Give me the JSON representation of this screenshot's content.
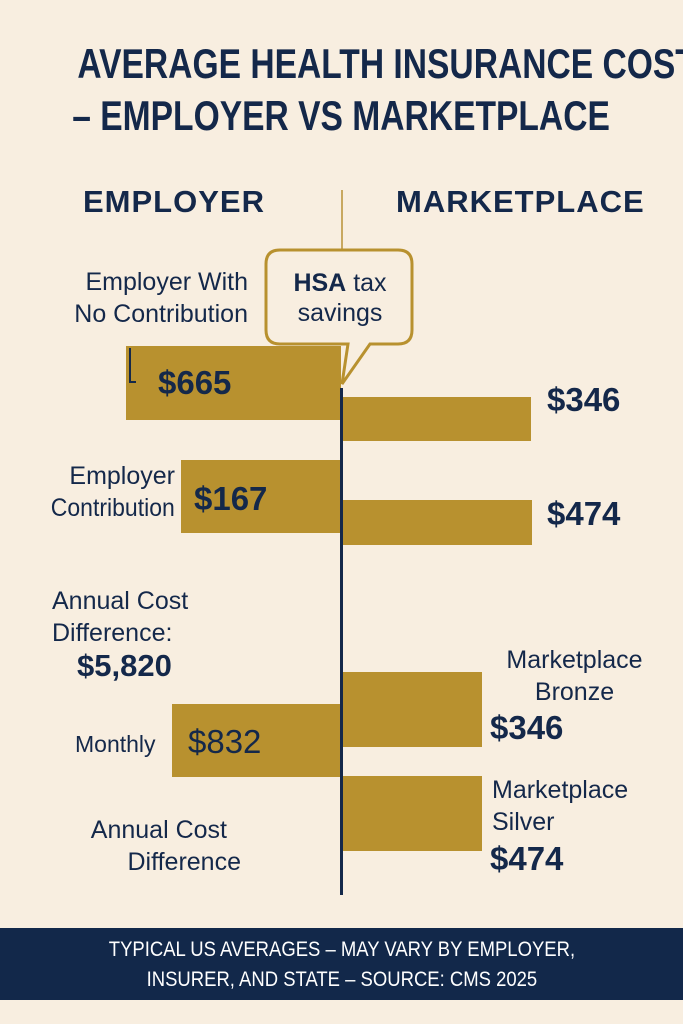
{
  "title": {
    "line1": "AVERAGE HEALTH INSURANCE COST",
    "line2": "– EMPLOYER VS MARKETPLACE"
  },
  "colors": {
    "background": "#f8eee0",
    "bar": "#b8912f",
    "text": "#14284a",
    "footer_bg": "#12284a"
  },
  "chart_data": {
    "type": "bar",
    "title": "Average Health Insurance Cost – Employer vs Marketplace",
    "left_header": "EMPLOYER",
    "right_header": "MARKETPLACE",
    "employer": [
      {
        "label": "Employer With No Contribution",
        "value": 665,
        "value_label": "$665"
      },
      {
        "label": "Employer Contribution",
        "value": 167,
        "value_label": "$167"
      },
      {
        "label": "Monthly",
        "value": 832,
        "value_label": "$832"
      }
    ],
    "marketplace": [
      {
        "label": "",
        "value": 346,
        "value_label": "$346"
      },
      {
        "label": "",
        "value": 474,
        "value_label": "$474"
      },
      {
        "label": "Marketplace Bronze",
        "value": 346,
        "value_label": "$346"
      },
      {
        "label": "Marketplace Silver",
        "value": 474,
        "value_label": "$474"
      }
    ],
    "annotations": {
      "callout": "HSA tax savings",
      "annual_diff_label": "Annual Cost Difference:",
      "annual_diff_value": "$5,820",
      "annual_diff_label2": "Annual Cost Difference"
    }
  },
  "labels": {
    "emp_no_contrib_1": "Employer With",
    "emp_no_contrib_2": "No Contribution",
    "emp_contrib_1": "Employer",
    "emp_contrib_2": "Contribution",
    "callout_bold": "HSA",
    "callout_rest": " tax",
    "callout_line2": "savings",
    "annual_1": "Annual Cost",
    "annual_2": "Difference:",
    "bronze_1": "Marketplace",
    "bronze_2": "Bronze",
    "silver_1": "Marketplace",
    "silver_2": "Silver",
    "annual_b1": "Annual Cost",
    "annual_b2": "Difference"
  },
  "footer": {
    "line1": "TYPICAL US AVERAGES – MAY VARY BY EMPLOYER,",
    "line2": "INSURER, AND STATE – SOURCE: CMS 2025"
  }
}
